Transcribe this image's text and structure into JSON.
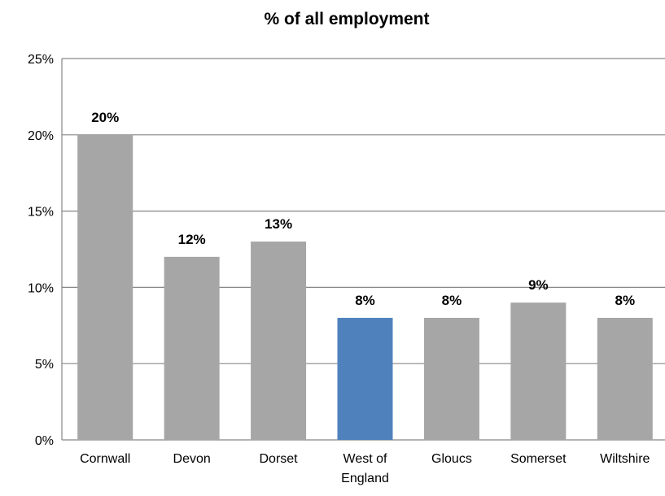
{
  "chart_data": {
    "type": "bar",
    "title": "% of all employment",
    "xlabel": "",
    "ylabel": "",
    "categories": [
      "Cornwall",
      "Devon",
      "Dorset",
      "West of England",
      "Gloucs",
      "Somerset",
      "Wiltshire"
    ],
    "category_lines": [
      [
        "Cornwall"
      ],
      [
        "Devon"
      ],
      [
        "Dorset"
      ],
      [
        "West of",
        "England"
      ],
      [
        "Gloucs"
      ],
      [
        "Somerset"
      ],
      [
        "Wiltshire"
      ]
    ],
    "values": [
      20,
      12,
      13,
      8,
      8,
      9,
      8
    ],
    "data_labels": [
      "20%",
      "12%",
      "13%",
      "8%",
      "8%",
      "9%",
      "8%"
    ],
    "ylim": [
      0,
      25
    ],
    "yticks": [
      0,
      5,
      10,
      15,
      20,
      25
    ],
    "ytick_labels": [
      "0%",
      "5%",
      "10%",
      "15%",
      "20%",
      "25%"
    ],
    "grid": true,
    "legend": "none",
    "highlight_category": "West of England",
    "colors": {
      "bar": "#a6a6a6",
      "highlight": "#4f81bd",
      "grid": "#868686"
    }
  }
}
